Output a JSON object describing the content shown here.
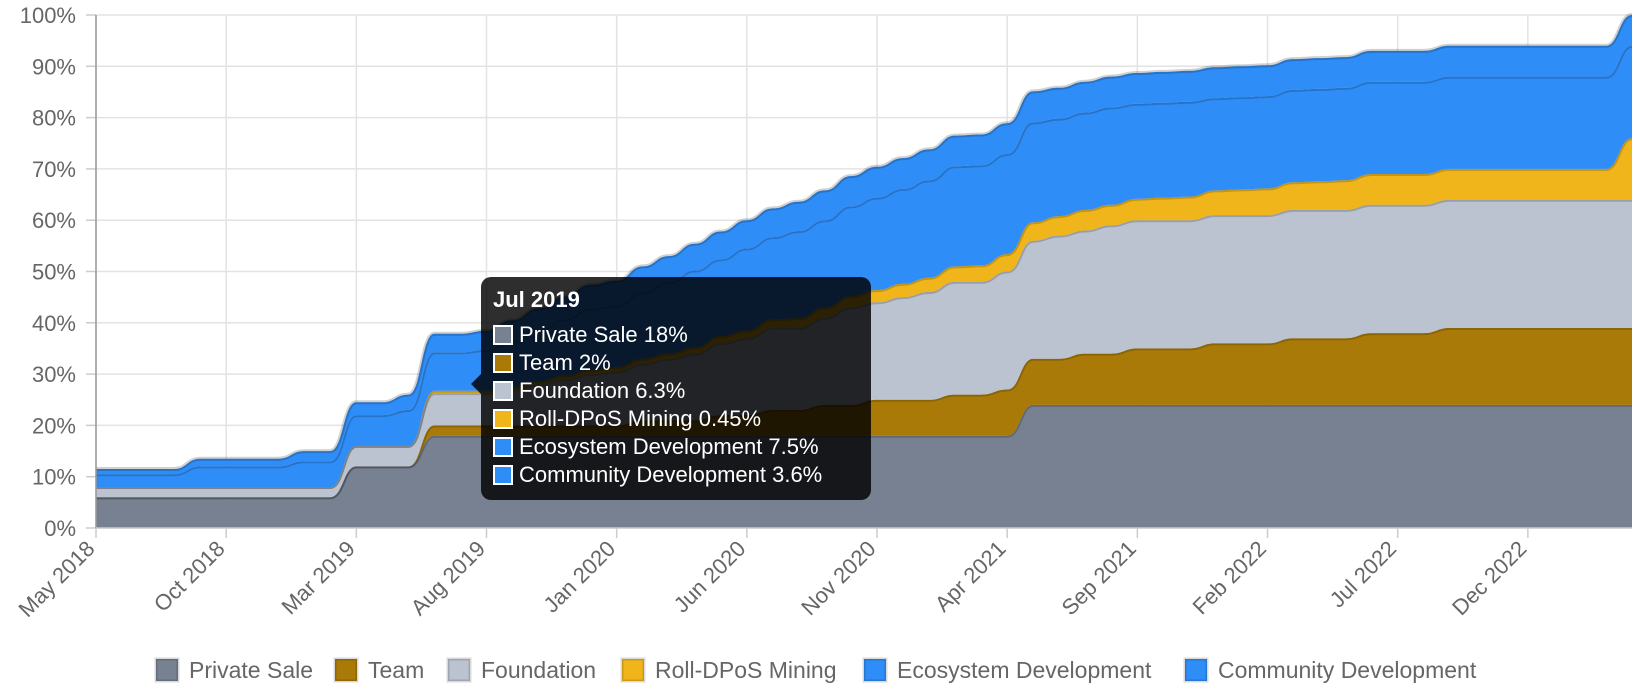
{
  "chart_data": {
    "type": "area",
    "stacked": true,
    "ylim": [
      0,
      100
    ],
    "y_ticks": [
      "0%",
      "10%",
      "20%",
      "30%",
      "40%",
      "50%",
      "60%",
      "70%",
      "80%",
      "90%",
      "100%"
    ],
    "x_ticks": [
      "May 2018",
      "Oct 2018",
      "Mar 2019",
      "Aug 2019",
      "Jan 2020",
      "Jun 2020",
      "Nov 2020",
      "Apr 2021",
      "Sep 2021",
      "Feb 2022",
      "Jul 2022",
      "Dec 2022"
    ],
    "x_start": "May 2018",
    "x_end": "Apr 2023",
    "grid": true,
    "legend_position": "bottom",
    "x": [
      "May 2018",
      "Jun 2018",
      "Jul 2018",
      "Aug 2018",
      "Sep 2018",
      "Oct 2018",
      "Nov 2018",
      "Dec 2018",
      "Jan 2019",
      "Feb 2019",
      "Mar 2019",
      "Apr 2019",
      "May 2019",
      "Jun 2019",
      "Jul 2019",
      "Aug 2019",
      "Sep 2019",
      "Oct 2019",
      "Nov 2019",
      "Dec 2019",
      "Jan 2020",
      "Feb 2020",
      "Mar 2020",
      "Apr 2020",
      "May 2020",
      "Jun 2020",
      "Jul 2020",
      "Aug 2020",
      "Sep 2020",
      "Oct 2020",
      "Nov 2020",
      "Dec 2020",
      "Jan 2021",
      "Feb 2021",
      "Mar 2021",
      "Apr 2021",
      "May 2021",
      "Jun 2021",
      "Jul 2021",
      "Aug 2021",
      "Sep 2021",
      "Oct 2021",
      "Nov 2021",
      "Dec 2021",
      "Jan 2022",
      "Feb 2022",
      "Mar 2022",
      "Apr 2022",
      "May 2022",
      "Jun 2022",
      "Jul 2022",
      "Aug 2022",
      "Sep 2022",
      "Oct 2022",
      "Nov 2022",
      "Dec 2022",
      "Jan 2023",
      "Feb 2023",
      "Mar 2023",
      "Apr 2023"
    ],
    "series": [
      {
        "name": "Private Sale",
        "color": "#778191",
        "values": [
          6,
          6,
          6,
          6,
          6,
          6,
          6,
          6,
          6,
          6,
          12,
          12,
          12,
          18,
          18,
          18,
          18,
          18,
          18,
          18,
          18,
          18,
          18,
          18,
          18,
          18,
          18,
          18,
          18,
          18,
          18,
          18,
          18,
          18,
          18,
          18,
          24,
          24,
          24,
          24,
          24,
          24,
          24,
          24,
          24,
          24,
          24,
          24,
          24,
          24,
          24,
          24,
          24,
          24,
          24,
          24,
          24,
          24,
          24,
          24
        ]
      },
      {
        "name": "Team",
        "color": "#a97a07",
        "values": [
          0,
          0,
          0,
          0,
          0,
          0,
          0,
          0,
          0,
          0,
          0,
          0,
          0,
          2,
          2,
          2,
          2,
          2,
          2,
          2,
          2,
          3,
          3,
          3,
          4,
          4,
          5,
          5,
          6,
          6,
          7,
          7,
          7,
          8,
          8,
          9,
          9,
          9,
          10,
          10,
          11,
          11,
          11,
          12,
          12,
          12,
          13,
          13,
          13,
          14,
          14,
          14,
          15,
          15,
          15,
          15,
          15,
          15,
          15,
          15
        ]
      },
      {
        "name": "Foundation",
        "color": "#bbc3d0",
        "values": [
          2,
          2,
          2,
          2,
          2,
          2,
          2,
          2,
          2,
          2,
          4,
          4,
          4,
          6.3,
          6.3,
          6.3,
          7,
          8,
          9,
          10,
          10.5,
          11,
          12,
          13,
          14,
          15,
          16,
          16,
          17,
          19,
          19,
          20,
          21,
          22,
          22,
          23,
          23,
          24,
          24,
          25,
          25,
          25,
          25,
          25,
          25,
          25,
          25,
          25,
          25,
          25,
          25,
          25,
          25,
          25,
          25,
          25,
          25,
          25,
          25,
          25
        ]
      },
      {
        "name": "Roll-DPoS Mining",
        "color": "#f0b51a",
        "values": [
          0,
          0,
          0,
          0,
          0,
          0,
          0,
          0,
          0,
          0,
          0,
          0,
          0,
          0.45,
          0.45,
          0.45,
          0.5,
          0.6,
          0.7,
          0.8,
          0.9,
          1,
          1,
          1.2,
          1.4,
          1.5,
          1.7,
          1.9,
          2,
          2.2,
          2.4,
          2.6,
          2.8,
          3,
          3.2,
          3.4,
          3.6,
          3.8,
          4,
          4,
          4.2,
          4.4,
          4.6,
          4.8,
          5,
          5.2,
          5.4,
          5.6,
          5.8,
          6,
          6,
          6,
          6,
          6,
          6,
          6,
          6,
          6,
          6,
          12
        ]
      },
      {
        "name": "Ecosystem Development",
        "color": "#2f8df7",
        "values": [
          2.5,
          2.5,
          2.5,
          2.5,
          4,
          4,
          4,
          4,
          5,
          5,
          6,
          6,
          7,
          7.5,
          7.5,
          8,
          9,
          10,
          11,
          12,
          12,
          13,
          14,
          15,
          15,
          16,
          16,
          17,
          17,
          17.5,
          18,
          18.5,
          19,
          19.5,
          19.5,
          19.5,
          19.5,
          19,
          19,
          19,
          18.5,
          18.5,
          18.5,
          18,
          18,
          18,
          18,
          18,
          18,
          18,
          18,
          18,
          18,
          18,
          18,
          18,
          18,
          18,
          18,
          18
        ]
      },
      {
        "name": "Community Development",
        "color": "#2f8df7",
        "values": [
          1,
          1,
          1,
          1,
          1.5,
          1.5,
          1.5,
          1.5,
          2,
          2,
          2.5,
          2.5,
          3,
          3.6,
          3.6,
          3.7,
          4,
          4.2,
          4.4,
          4.6,
          4.8,
          5,
          5,
          5.2,
          5.4,
          5.5,
          5.6,
          5.7,
          5.8,
          5.9,
          6,
          6,
          6,
          6,
          6,
          6,
          6,
          6,
          6,
          6,
          6,
          6,
          6,
          6,
          6,
          6,
          6,
          6,
          6,
          6,
          6,
          6,
          6,
          6,
          6,
          6,
          6,
          6,
          6,
          6
        ]
      }
    ],
    "tooltip": {
      "title": "Jul 2019",
      "rows": [
        {
          "text": "Private Sale 18%",
          "color": "#778191"
        },
        {
          "text": "Team 2%",
          "color": "#a97a07"
        },
        {
          "text": "Foundation 6.3%",
          "color": "#bbc3d0"
        },
        {
          "text": "Roll-DPoS Mining 0.45%",
          "color": "#f0b51a"
        },
        {
          "text": "Ecosystem Development 7.5%",
          "color": "#2f8df7"
        },
        {
          "text": "Community Development 3.6%",
          "color": "#2f8df7"
        }
      ]
    }
  }
}
